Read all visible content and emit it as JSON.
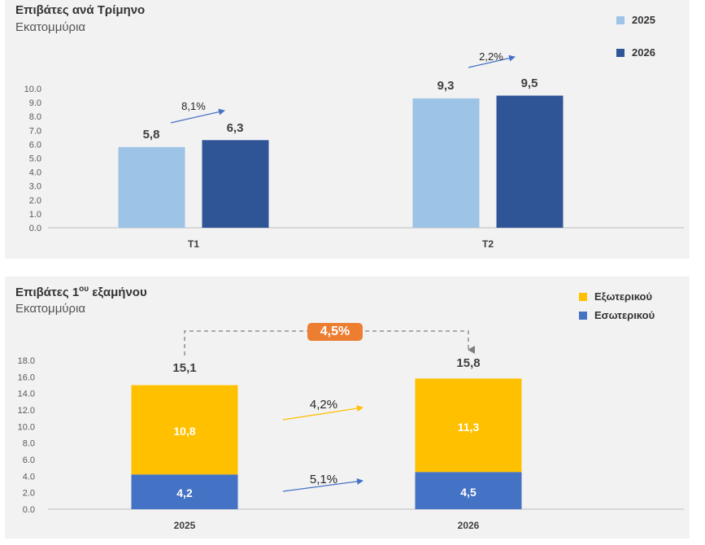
{
  "top": {
    "title": "Επιβάτες ανά Τρίμηνο",
    "subtitle": "Εκατομμύρια",
    "legend": [
      {
        "label": "2025",
        "color": "#9dc3e6"
      },
      {
        "label": "2026",
        "color": "#2f5597"
      }
    ],
    "y_ticks": [
      "0.0",
      "1.0",
      "2.0",
      "3.0",
      "4.0",
      "5.0",
      "6.0",
      "7.0",
      "8.0",
      "9.0",
      "10.0"
    ],
    "categories": [
      "T1",
      "T2"
    ],
    "value_labels": {
      "t1_2025": "5,8",
      "t1_2026": "6,3",
      "t2_2025": "9,3",
      "t2_2026": "9,5"
    },
    "growth": {
      "t1": "8,1%",
      "t2": "2,2%"
    }
  },
  "bottom": {
    "title": "Επιβάτες 1",
    "title_sup": "ου",
    "title_rest": " εξαμήνου",
    "subtitle": "Εκατομμύρια",
    "legend": [
      {
        "label": "Εξωτερικού",
        "color": "#ffc000"
      },
      {
        "label": "Εσωτερικού",
        "color": "#4472c4"
      }
    ],
    "y_ticks": [
      "0.0",
      "2.0",
      "4.0",
      "6.0",
      "8.0",
      "10.0",
      "12.0",
      "14.0",
      "16.0",
      "18.0"
    ],
    "categories": [
      "2025",
      "2026"
    ],
    "total_labels": {
      "y2025": "15,1",
      "y2026": "15,8"
    },
    "segment_labels": {
      "ext_2025": "10,8",
      "int_2025": "4,2",
      "ext_2026": "11,3",
      "int_2026": "4,5"
    },
    "growth": {
      "total": "4,5%",
      "external": "4,2%",
      "internal": "5,1%"
    }
  },
  "chart_data": [
    {
      "type": "bar",
      "title": "Επιβάτες ανά Τρίμηνο",
      "subtitle": "Εκατομμύρια",
      "categories": [
        "T1",
        "T2"
      ],
      "series": [
        {
          "name": "2025",
          "values": [
            5.8,
            9.3
          ],
          "color": "#9dc3e6"
        },
        {
          "name": "2026",
          "values": [
            6.3,
            9.5
          ],
          "color": "#2f5597"
        }
      ],
      "ylim": [
        0,
        10
      ],
      "legend": "top-right",
      "grid": false,
      "annotations": [
        "8,1%",
        "2,2%"
      ]
    },
    {
      "type": "bar",
      "stacked": true,
      "title": "Επιβάτες 1ου εξαμήνου",
      "subtitle": "Εκατομμύρια",
      "categories": [
        "2025",
        "2026"
      ],
      "series": [
        {
          "name": "Εσωτερικού",
          "values": [
            4.2,
            4.5
          ],
          "color": "#4472c4"
        },
        {
          "name": "Εξωτερικού",
          "values": [
            10.8,
            11.3
          ],
          "color": "#ffc000"
        }
      ],
      "totals": [
        15.1,
        15.8
      ],
      "ylim": [
        0,
        18
      ],
      "legend": "top-right",
      "grid": false,
      "annotations": [
        "4,5%",
        "4,2%",
        "5,1%"
      ]
    }
  ]
}
